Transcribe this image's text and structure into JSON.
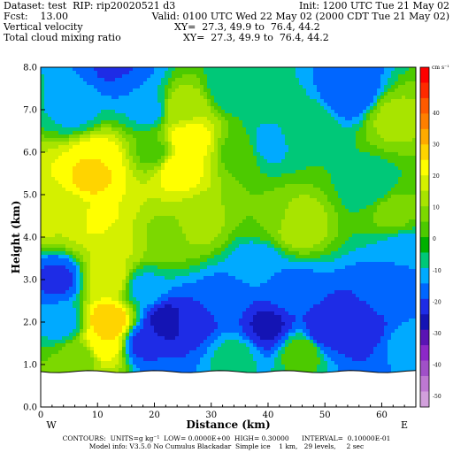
{
  "header": {
    "dataset": "Dataset: test  RIP: rip20020521 d3",
    "init": "Init: 1200 UTC Tue 21 May 02",
    "fcst": "Fcst:    13.00",
    "valid": "Valid: 0100 UTC Wed 22 May 02 (2000 CDT Tue 21 May 02)",
    "field1": "Vertical velocity",
    "xy1": "XY=  27.3, 49.9 to  76.4, 44.2",
    "field2": "Total cloud mixing ratio",
    "xy2": "XY=  27.3, 49.9 to  76.4, 44.2"
  },
  "footer": {
    "contours": "CONTOURS:  UNITS=g kg⁻¹  LOW= 0.0000E+00  HIGH= 0.30000      INTERVAL=  0.10000E-01",
    "model": "Model info: V3.5.0 No Cumulus Blackadar  Simple ice    1 km,   29 levels,     2 sec"
  },
  "chart_data": {
    "type": "heatmap",
    "xlabel": "Distance (km)",
    "ylabel": "Height (km)",
    "xlim": [
      0,
      66
    ],
    "ylim": [
      0,
      8
    ],
    "x_ticks": [
      0,
      10,
      20,
      30,
      40,
      50,
      60
    ],
    "y_ticks": [
      "0.0",
      "1.0",
      "2.0",
      "3.0",
      "4.0",
      "5.0",
      "6.0",
      "7.0",
      "8.0"
    ],
    "x_left_label": "W",
    "x_right_label": "E",
    "terrain_top_km": 0.85,
    "colorbar": {
      "unit_label": "cm s⁻¹",
      "tick_labels": [
        "40",
        "30",
        "20",
        "10",
        "0",
        "-10",
        "-20",
        "-30",
        "-40",
        "-50"
      ],
      "colors": [
        "#ff0000",
        "#ff2a00",
        "#ff5a00",
        "#ff7f00",
        "#ffaa00",
        "#ffd400",
        "#ffff00",
        "#d4f000",
        "#a8e400",
        "#7cd800",
        "#4cca00",
        "#00b100",
        "#00c878",
        "#00aaff",
        "#0066ff",
        "#1e2ce6",
        "#1414b4",
        "#5a14b4",
        "#8c28c8",
        "#a050c8",
        "#be78d2",
        "#d2a0dc"
      ]
    },
    "contour_levels": {
      "-17": "#1414b4",
      "-14": "#1e2ce6",
      "-10": "#0066ff",
      "-6": "#00aaff",
      "-3": "#00c878",
      "0": "#4cca00",
      "3": "#7cd800",
      "6": "#a8e400",
      "10": "#d4f000",
      "14": "#ffff00",
      "18": "#ffd400",
      "23": "#ffaa00",
      "27": "#ff7f00"
    },
    "cells": [
      {
        "x": 6,
        "y": 7.0,
        "v": -4
      },
      {
        "x": 0,
        "y": 4.6,
        "v": 12
      },
      {
        "x": 5,
        "y": 4.5,
        "v": 10
      },
      {
        "x": 9,
        "y": 5.4,
        "v": 19
      },
      {
        "x": 10,
        "y": 5.8,
        "v": 18
      },
      {
        "x": 10,
        "y": 4.4,
        "v": 15
      },
      {
        "x": 13,
        "y": 3.8,
        "v": 11
      },
      {
        "x": 12,
        "y": 3.0,
        "v": 14
      },
      {
        "x": 12,
        "y": 2.0,
        "v": 23
      },
      {
        "x": 11,
        "y": 1.5,
        "v": 18
      },
      {
        "x": 16,
        "y": 7.6,
        "v": -6
      },
      {
        "x": 14,
        "y": 8.0,
        "v": -12
      },
      {
        "x": 19,
        "y": 7.0,
        "v": -4
      },
      {
        "x": 20,
        "y": 6.0,
        "v": 2
      },
      {
        "x": 24,
        "y": 5.6,
        "v": 17
      },
      {
        "x": 26,
        "y": 6.3,
        "v": 18
      },
      {
        "x": 25,
        "y": 7.0,
        "v": 9
      },
      {
        "x": 28,
        "y": 4.3,
        "v": 7
      },
      {
        "x": 22,
        "y": 4.0,
        "v": 5
      },
      {
        "x": 34,
        "y": 7.5,
        "v": -3
      },
      {
        "x": 35,
        "y": 6.0,
        "v": 2
      },
      {
        "x": 40,
        "y": 6.2,
        "v": -4
      },
      {
        "x": 40,
        "y": 4.5,
        "v": 3
      },
      {
        "x": 38,
        "y": 3.4,
        "v": -5
      },
      {
        "x": 45,
        "y": 4.3,
        "v": 9
      },
      {
        "x": 47,
        "y": 6.5,
        "v": 0
      },
      {
        "x": 55,
        "y": 7.4,
        "v": -10
      },
      {
        "x": 58,
        "y": 5.2,
        "v": -2
      },
      {
        "x": 62,
        "y": 4.6,
        "v": 4
      },
      {
        "x": 62,
        "y": 6.8,
        "v": 7
      },
      {
        "x": 64,
        "y": 3.6,
        "v": -6
      },
      {
        "x": 3,
        "y": 3.0,
        "v": -11
      },
      {
        "x": 4,
        "y": 2.0,
        "v": -5
      },
      {
        "x": 18,
        "y": 2.8,
        "v": -4
      },
      {
        "x": 22,
        "y": 2.0,
        "v": -16
      },
      {
        "x": 18,
        "y": 1.5,
        "v": -11
      },
      {
        "x": 27,
        "y": 2.0,
        "v": -12
      },
      {
        "x": 32,
        "y": 2.6,
        "v": -7
      },
      {
        "x": 40,
        "y": 1.9,
        "v": -15
      },
      {
        "x": 44,
        "y": 2.7,
        "v": -8
      },
      {
        "x": 50,
        "y": 1.8,
        "v": -13
      },
      {
        "x": 56,
        "y": 2.0,
        "v": -14
      },
      {
        "x": 60,
        "y": 2.6,
        "v": -8
      },
      {
        "x": 34,
        "y": 1.2,
        "v": -2
      },
      {
        "x": 46,
        "y": 1.3,
        "v": 2
      },
      {
        "x": 65,
        "y": 1.5,
        "v": -5
      },
      {
        "x": 7,
        "y": 1.2,
        "v": 4
      }
    ]
  }
}
